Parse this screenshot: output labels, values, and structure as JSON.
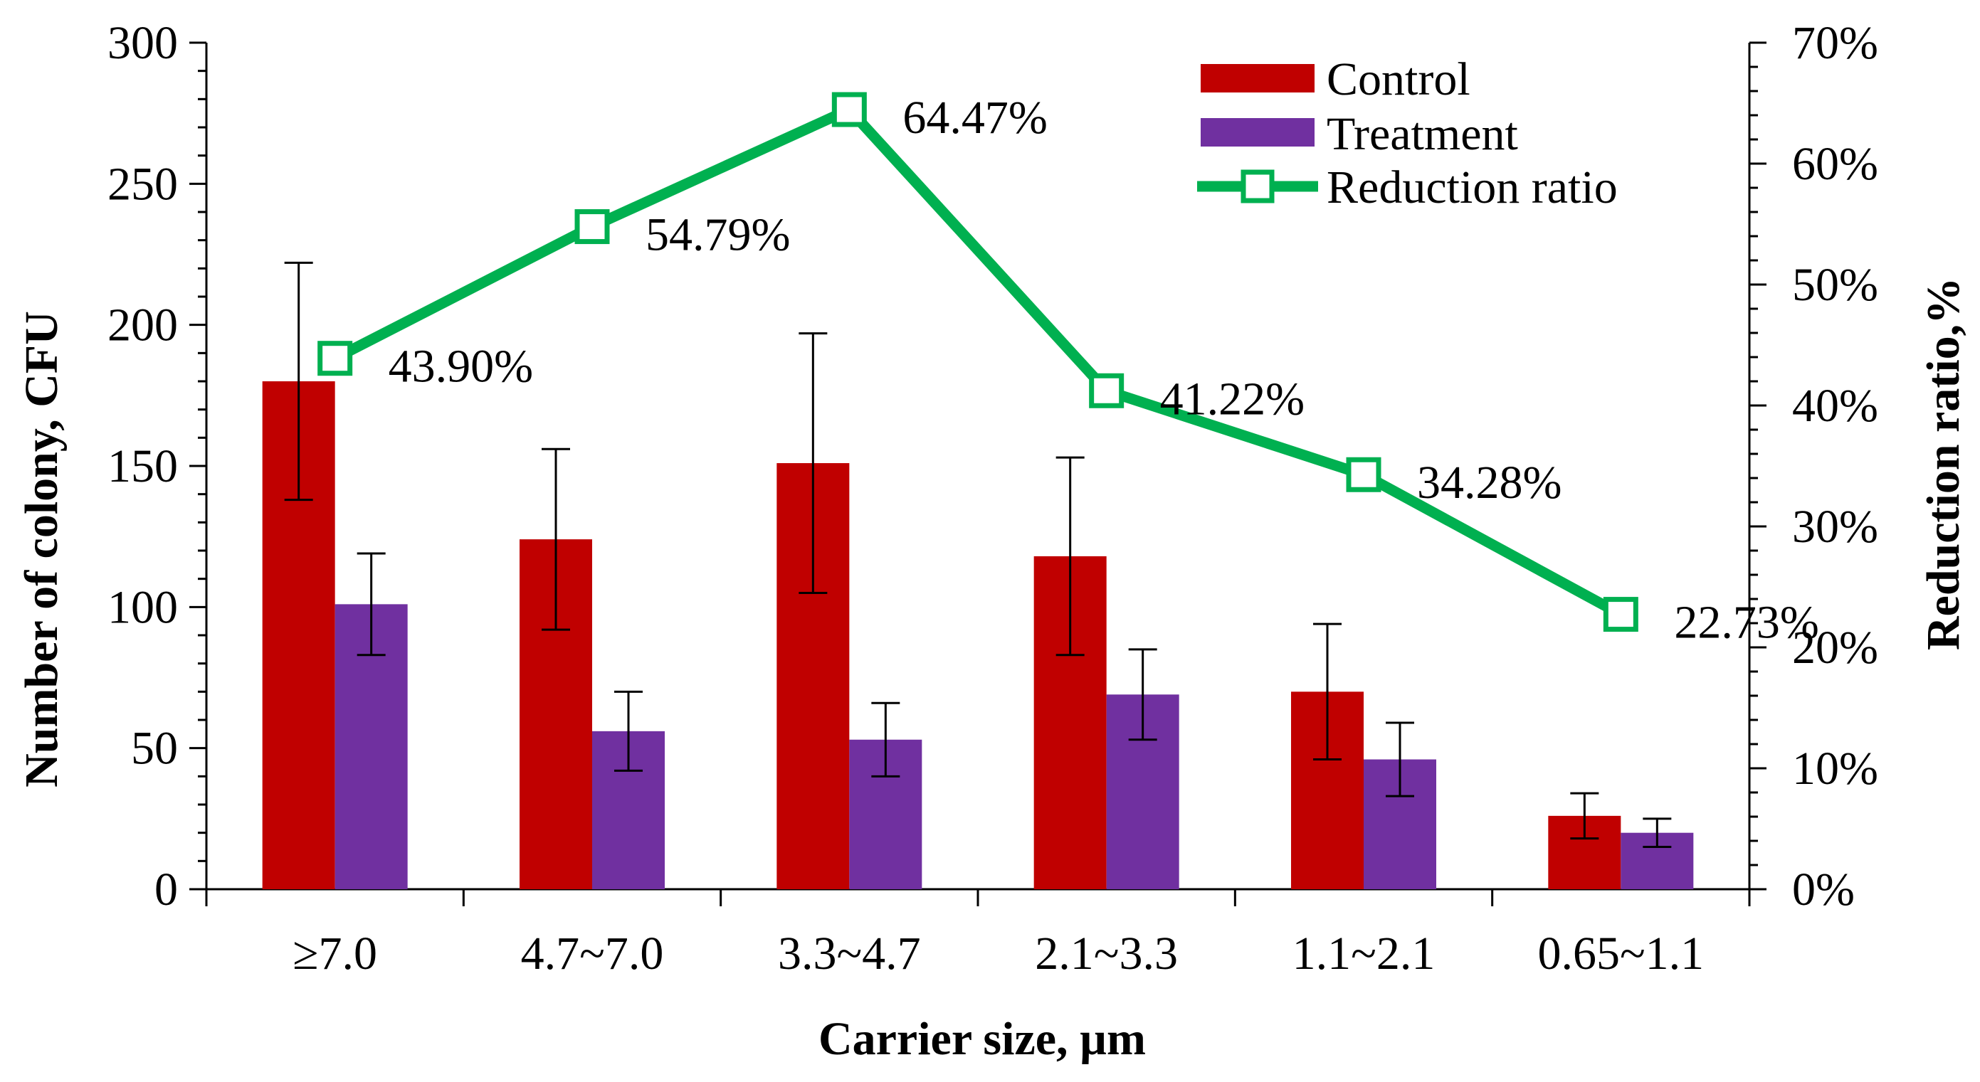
{
  "chart_data": {
    "type": "bar+line",
    "title": "",
    "xlabel": "Carrier size, µm",
    "ylabel": "Number of colony, CFU",
    "y2label": "Reduction ratio,%",
    "categories": [
      "≥7.0",
      "4.7~7.0",
      "3.3~4.7",
      "2.1~3.3",
      "1.1~2.1",
      "0.65~1.1"
    ],
    "ylim": [
      0,
      300
    ],
    "yticks": [
      "0",
      "50",
      "100",
      "150",
      "200",
      "250",
      "300"
    ],
    "y2lim": [
      0,
      70
    ],
    "y2ticks": [
      "0%",
      "10%",
      "20%",
      "30%",
      "40%",
      "50%",
      "60%",
      "70%"
    ],
    "series": [
      {
        "name": "Control",
        "kind": "bar",
        "color": "#C00000",
        "values": [
          180,
          124,
          151,
          118,
          70,
          26
        ],
        "errors": [
          42,
          32,
          46,
          35,
          24,
          8
        ]
      },
      {
        "name": "Treatment",
        "kind": "bar",
        "color": "#7030A0",
        "values": [
          101,
          56,
          53,
          69,
          46,
          20
        ],
        "errors": [
          18,
          14,
          13,
          16,
          13,
          5
        ]
      },
      {
        "name": "Reduction ratio",
        "kind": "line",
        "axis": "right",
        "color": "#00B050",
        "values": [
          43.9,
          54.79,
          64.47,
          41.22,
          34.28,
          22.73
        ],
        "labels": [
          "43.90%",
          "54.79%",
          "64.47%",
          "41.22%",
          "34.28%",
          "22.73%"
        ]
      }
    ],
    "legend_position": "top-right"
  }
}
